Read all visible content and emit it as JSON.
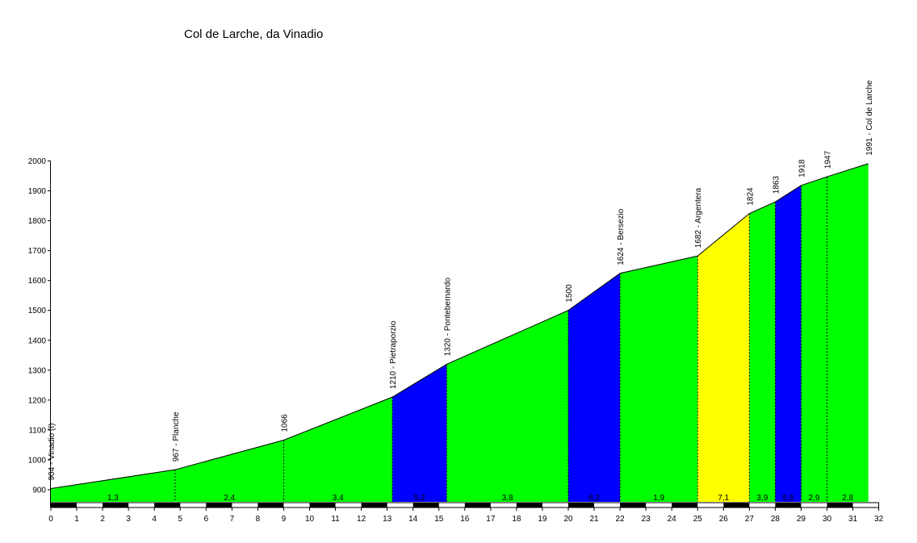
{
  "chart_data": {
    "type": "area",
    "title": "Col de Larche, da Vinadio",
    "xlabel": "",
    "ylabel": "",
    "xlim": [
      0,
      32
    ],
    "ylim": [
      850,
      2000
    ],
    "x_ticks": [
      0,
      1,
      2,
      3,
      4,
      5,
      6,
      7,
      8,
      9,
      10,
      11,
      12,
      13,
      14,
      15,
      16,
      17,
      18,
      19,
      20,
      21,
      22,
      23,
      24,
      25,
      26,
      27,
      28,
      29,
      30,
      31,
      32
    ],
    "y_ticks": [
      900,
      1000,
      1100,
      1200,
      1300,
      1400,
      1500,
      1600,
      1700,
      1800,
      1900,
      2000
    ],
    "points": [
      {
        "x": 0,
        "y": 904,
        "label": "904 - Vinadio (I)"
      },
      {
        "x": 4.8,
        "y": 967,
        "label": "967 - Planche"
      },
      {
        "x": 9.0,
        "y": 1066,
        "label": "1066"
      },
      {
        "x": 13.2,
        "y": 1210,
        "label": "1210 - Pietraporzio"
      },
      {
        "x": 15.3,
        "y": 1320,
        "label": "1320 - Pontebernardo"
      },
      {
        "x": 20.0,
        "y": 1500,
        "label": "1500"
      },
      {
        "x": 22.0,
        "y": 1624,
        "label": "1624 - Bersezio"
      },
      {
        "x": 25.0,
        "y": 1682,
        "label": "1682 - Argentera"
      },
      {
        "x": 27.0,
        "y": 1824,
        "label": "1824"
      },
      {
        "x": 28.0,
        "y": 1863,
        "label": "1863"
      },
      {
        "x": 29.0,
        "y": 1918,
        "label": "1918"
      },
      {
        "x": 30.0,
        "y": 1947,
        "label": "1947"
      },
      {
        "x": 31.6,
        "y": 1991,
        "label": "1991 - Col de Larche"
      }
    ],
    "segments": [
      {
        "from": 0,
        "to": 4.8,
        "gradient": "1,3",
        "color": "#00ff00"
      },
      {
        "from": 4.8,
        "to": 9.0,
        "gradient": "2,4",
        "color": "#00ff00"
      },
      {
        "from": 9.0,
        "to": 13.2,
        "gradient": "3,4",
        "color": "#00ff00"
      },
      {
        "from": 13.2,
        "to": 15.3,
        "gradient": "5,2",
        "color": "#0000ff"
      },
      {
        "from": 15.3,
        "to": 20.0,
        "gradient": "3,8",
        "color": "#00ff00"
      },
      {
        "from": 20.0,
        "to": 22.0,
        "gradient": "6,2",
        "color": "#0000ff"
      },
      {
        "from": 22.0,
        "to": 25.0,
        "gradient": "1,9",
        "color": "#00ff00"
      },
      {
        "from": 25.0,
        "to": 27.0,
        "gradient": "7,1",
        "color": "#ffff00"
      },
      {
        "from": 27.0,
        "to": 28.0,
        "gradient": "3,9",
        "color": "#00ff00"
      },
      {
        "from": 28.0,
        "to": 29.0,
        "gradient": "5,5",
        "color": "#0000ff"
      },
      {
        "from": 29.0,
        "to": 30.0,
        "gradient": "2,9",
        "color": "#00ff00"
      },
      {
        "from": 30.0,
        "to": 31.6,
        "gradient": "2,8",
        "color": "#00ff00"
      }
    ],
    "grid": false,
    "legend": "none"
  }
}
